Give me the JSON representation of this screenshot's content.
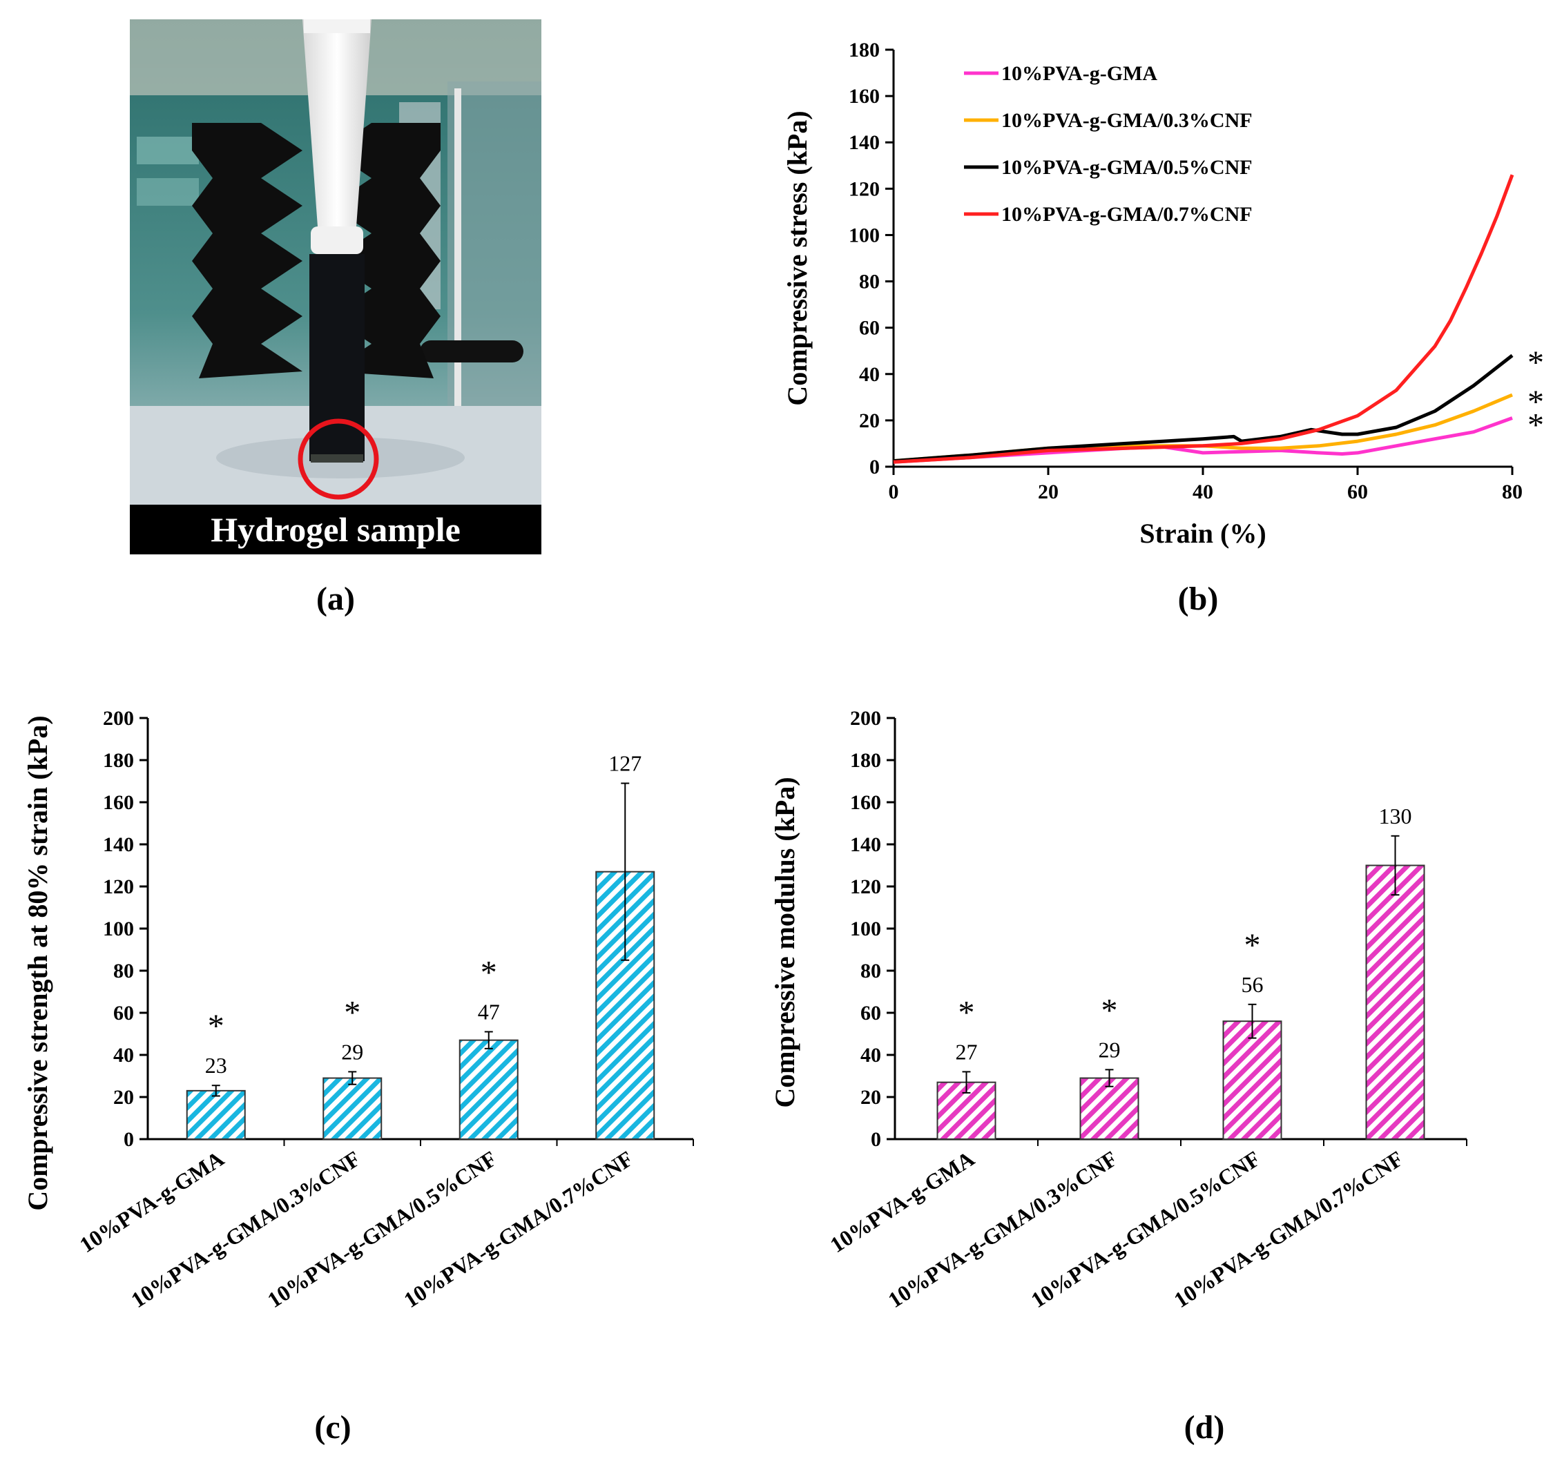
{
  "panels": {
    "a": {
      "label": "(a)",
      "caption": "Hydrogel sample"
    },
    "b": {
      "label": "(b)"
    },
    "c": {
      "label": "(c)"
    },
    "d": {
      "label": "(d)"
    }
  },
  "colors": {
    "pink": "#ff33cc",
    "orange": "#ffb000",
    "black": "#000000",
    "red": "#ff2020",
    "bar_cyan": "#19b6e0",
    "bar_magenta": "#e639c0",
    "marker_circle": "#e8141c"
  },
  "chart_data": [
    {
      "id": "b",
      "type": "line",
      "xlabel": "Strain (%)",
      "ylabel": "Compressive stress (kPa)",
      "xlim": [
        0,
        80
      ],
      "ylim": [
        0,
        180
      ],
      "xticks": [
        "0",
        "20",
        "40",
        "60",
        "80"
      ],
      "yticks": [
        "0",
        "20",
        "40",
        "60",
        "80",
        "100",
        "120",
        "140",
        "160",
        "180"
      ],
      "legend_position": "top-left",
      "grid": false,
      "significance_marks": [
        "*",
        "*",
        "*"
      ],
      "series": [
        {
          "name": "10%PVA-g-GMA",
          "color": "#ff33cc",
          "x": [
            0,
            10,
            20,
            30,
            35,
            38,
            40,
            45,
            50,
            55,
            58,
            60,
            65,
            70,
            75,
            80
          ],
          "y": [
            2,
            4,
            6,
            8,
            8.5,
            7,
            6,
            6.5,
            7,
            6,
            5.5,
            6,
            9,
            12,
            15,
            21
          ]
        },
        {
          "name": "10%PVA-g-GMA/0.3%CNF",
          "color": "#ffb000",
          "x": [
            0,
            10,
            20,
            30,
            40,
            45,
            50,
            55,
            60,
            65,
            70,
            75,
            80
          ],
          "y": [
            2.5,
            5,
            8,
            9,
            9,
            8,
            8,
            9,
            11,
            14,
            18,
            24,
            31
          ]
        },
        {
          "name": "10%PVA-g-GMA/0.5%CNF",
          "color": "#000000",
          "x": [
            0,
            10,
            20,
            25,
            30,
            35,
            40,
            44,
            45,
            50,
            54,
            56,
            58,
            60,
            65,
            70,
            75,
            80
          ],
          "y": [
            2.5,
            5,
            8,
            9,
            10,
            11,
            12,
            13,
            11,
            13,
            16,
            15,
            14,
            14,
            17,
            24,
            35,
            48
          ]
        },
        {
          "name": "10%PVA-g-GMA/0.7%CNF",
          "color": "#ff2020",
          "x": [
            0,
            10,
            20,
            30,
            40,
            45,
            50,
            55,
            60,
            65,
            70,
            72,
            74,
            76,
            78,
            80
          ],
          "y": [
            2,
            4,
            7,
            8,
            9,
            10,
            12,
            16,
            22,
            33,
            52,
            63,
            77,
            92,
            108,
            126
          ]
        }
      ]
    },
    {
      "id": "c",
      "type": "bar",
      "ylabel": "Compressive strength at 80% strain (kPa)",
      "xlabel": "",
      "ylim": [
        0,
        200
      ],
      "yticks": [
        "0",
        "20",
        "40",
        "60",
        "80",
        "100",
        "120",
        "140",
        "160",
        "180",
        "200"
      ],
      "categories": [
        "10%PVA-g-GMA",
        "10%PVA-g-GMA/0.3%CNF",
        "10%PVA-g-GMA/0.5%CNF",
        "10%PVA-g-GMA/0.7%CNF"
      ],
      "values": [
        23,
        29,
        47,
        127
      ],
      "errors": [
        2.5,
        3,
        4,
        42
      ],
      "value_labels": [
        "23",
        "29",
        "47",
        "127"
      ],
      "significance": [
        "*",
        "*",
        "*",
        ""
      ],
      "bar_color": "#19b6e0",
      "pattern": "diagonal-hatch"
    },
    {
      "id": "d",
      "type": "bar",
      "ylabel": "Compressive modulus (kPa)",
      "xlabel": "",
      "ylim": [
        0,
        200
      ],
      "yticks": [
        "0",
        "20",
        "40",
        "60",
        "80",
        "100",
        "120",
        "140",
        "160",
        "180",
        "200"
      ],
      "categories": [
        "10%PVA-g-GMA",
        "10%PVA-g-GMA/0.3%CNF",
        "10%PVA-g-GMA/0.5%CNF",
        "10%PVA-g-GMA/0.7%CNF"
      ],
      "values": [
        27,
        29,
        56,
        130
      ],
      "errors": [
        5,
        4,
        8,
        14
      ],
      "value_labels": [
        "27",
        "29",
        "56",
        "130"
      ],
      "significance": [
        "*",
        "*",
        "*",
        ""
      ],
      "bar_color": "#e639c0",
      "pattern": "diagonal-hatch"
    }
  ]
}
